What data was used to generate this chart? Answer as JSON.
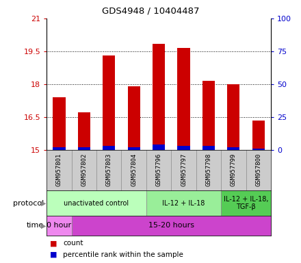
{
  "title": "GDS4948 / 10404487",
  "samples": [
    "GSM957801",
    "GSM957802",
    "GSM957803",
    "GSM957804",
    "GSM957796",
    "GSM957797",
    "GSM957798",
    "GSM957799",
    "GSM957800"
  ],
  "count_values": [
    17.4,
    16.7,
    19.3,
    17.9,
    19.85,
    19.65,
    18.15,
    18.0,
    16.35
  ],
  "percentile_values": [
    2,
    2,
    3,
    2,
    4,
    3,
    3,
    2,
    1
  ],
  "ylim": [
    15,
    21
  ],
  "ylim_right": [
    0,
    100
  ],
  "yticks_left": [
    15,
    16.5,
    18,
    19.5,
    21
  ],
  "yticks_right": [
    0,
    25,
    50,
    75,
    100
  ],
  "ytick_labels_left": [
    "15",
    "16.5",
    "18",
    "19.5",
    "21"
  ],
  "ytick_labels_right": [
    "0",
    "25",
    "50",
    "75",
    "100"
  ],
  "bar_color_red": "#cc0000",
  "bar_color_blue": "#0000cc",
  "bar_width": 0.5,
  "protocol_groups": [
    {
      "label": "unactivated control",
      "start": 0,
      "end": 4,
      "color": "#bbffbb"
    },
    {
      "label": "IL-12 + IL-18",
      "start": 4,
      "end": 7,
      "color": "#99ee99"
    },
    {
      "label": "IL-12 + IL-18,\nTGF-β",
      "start": 7,
      "end": 9,
      "color": "#55cc55"
    }
  ],
  "time_groups": [
    {
      "label": "0 hour",
      "start": 0,
      "end": 1,
      "color": "#ee88ee"
    },
    {
      "label": "15-20 hours",
      "start": 1,
      "end": 9,
      "color": "#cc44cc"
    }
  ],
  "protocol_label": "protocol",
  "time_label": "time",
  "legend_count": "count",
  "legend_percentile": "percentile rank within the sample",
  "left_color": "#cc0000",
  "right_color": "#0000cc",
  "sample_bg": "#cccccc",
  "chart_bg": "white"
}
